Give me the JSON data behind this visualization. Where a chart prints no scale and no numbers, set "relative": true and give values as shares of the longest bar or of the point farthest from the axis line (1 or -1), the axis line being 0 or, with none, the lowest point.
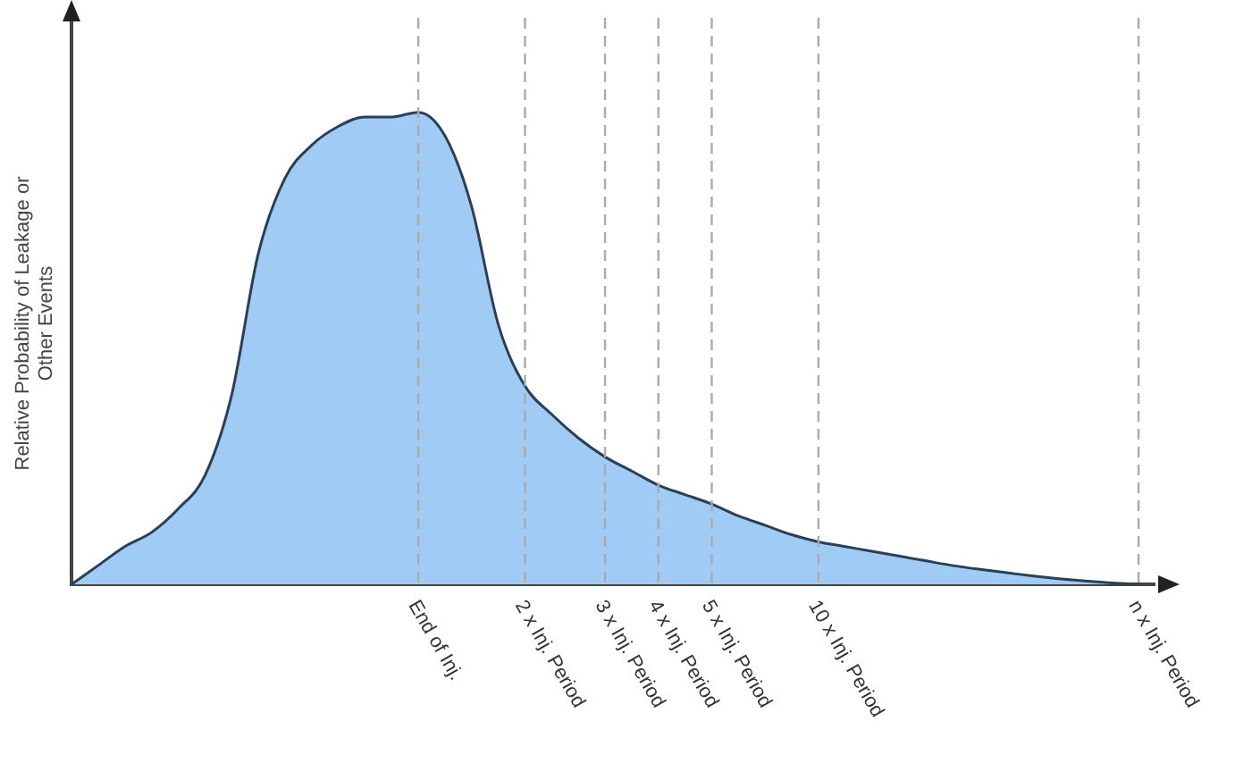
{
  "chart_data": {
    "type": "area",
    "relative": true,
    "ylabel": "Relative Probability of Leakage or Other Events",
    "categories": [
      null,
      null,
      null,
      null,
      null,
      null,
      null,
      null,
      null,
      null,
      null,
      null,
      null,
      "End of Inj.",
      null,
      null,
      null,
      "2 x Inj. Period",
      null,
      null,
      "3 x Inj. Period",
      null,
      "4 x Inj. Period",
      null,
      "5 x Inj. Period",
      null,
      null,
      null,
      "10 x Inj. Period",
      null,
      null,
      null,
      null,
      null,
      null,
      null,
      null,
      null,
      null,
      null,
      "n x Inj. Period"
    ],
    "series": [
      {
        "color": "#9fcbf5",
        "values": [
          0,
          0.04,
          0.08,
          0.11,
          0.16,
          0.23,
          0.4,
          0.7,
          0.86,
          0.93,
          0.97,
          0.99,
          0.99,
          1,
          0.95,
          0.8,
          0.55,
          0.42,
          0.36,
          0.31,
          0.27,
          0.24,
          0.21,
          0.19,
          0.17,
          0.145,
          0.125,
          0.105,
          0.09,
          0.08,
          0.07,
          0.06,
          0.05,
          0.04,
          0.032,
          0.025,
          0.018,
          0.012,
          0.007,
          0.003,
          0
        ]
      }
    ],
    "ref_lines": [
      {
        "axis": "x",
        "value": "End of Inj.",
        "color": "#aaaaaa",
        "line_style": "dashed"
      },
      {
        "axis": "x",
        "value": "2 x Inj. Period",
        "color": "#aaaaaa",
        "line_style": "dashed"
      },
      {
        "axis": "x",
        "value": "3 x Inj. Period",
        "color": "#aaaaaa",
        "line_style": "dashed"
      },
      {
        "axis": "x",
        "value": "4 x Inj. Period",
        "color": "#aaaaaa",
        "line_style": "dashed"
      },
      {
        "axis": "x",
        "value": "5 x Inj. Period",
        "color": "#aaaaaa",
        "line_style": "dashed"
      },
      {
        "axis": "x",
        "value": "10 x Inj. Period",
        "color": "#aaaaaa",
        "line_style": "dashed"
      },
      {
        "axis": "x",
        "value": "n x Inj. Period",
        "color": "#aaaaaa",
        "line_style": "dashed"
      }
    ],
    "grid": false,
    "legend": false,
    "marker": "none"
  }
}
